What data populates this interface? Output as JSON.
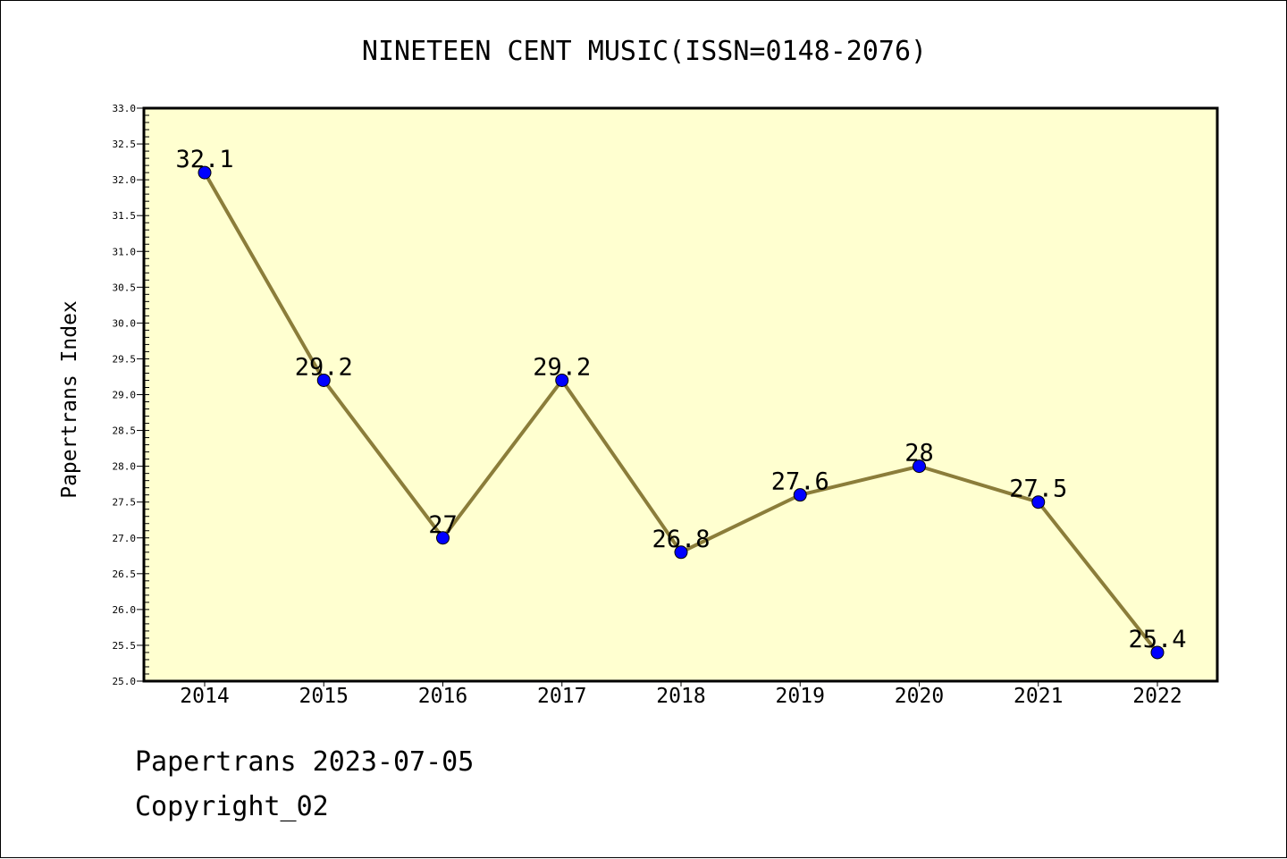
{
  "chart_data": {
    "type": "line",
    "title": "NINETEEN CENT MUSIC(ISSN=0148-2076)",
    "xlabel": "",
    "ylabel": "Papertrans Index",
    "categories": [
      "2014",
      "2015",
      "2016",
      "2017",
      "2018",
      "2019",
      "2020",
      "2021",
      "2022"
    ],
    "series": [
      {
        "values": [
          32.1,
          29.2,
          27,
          29.2,
          26.8,
          27.6,
          28,
          27.5,
          25.4
        ],
        "labels": [
          "32.1",
          "29.2",
          "27",
          "29.2",
          "26.8",
          "27.6",
          "28",
          "27.5",
          "25.4"
        ]
      }
    ],
    "ylim": [
      25.0,
      33.0
    ],
    "yticks": [
      "25.0",
      "25.5",
      "26.0",
      "26.5",
      "27.0",
      "27.5",
      "28.0",
      "28.5",
      "29.0",
      "29.5",
      "30.0",
      "30.5",
      "31.0",
      "31.5",
      "32.0",
      "32.5",
      "33.0"
    ],
    "grid": false,
    "colors": {
      "line": "#8b7d3a",
      "marker": "#0000ff",
      "plot_background": "#ffffd0"
    }
  },
  "footer": {
    "line1": "Papertrans 2023-07-05",
    "line2": "Copyright_02"
  }
}
